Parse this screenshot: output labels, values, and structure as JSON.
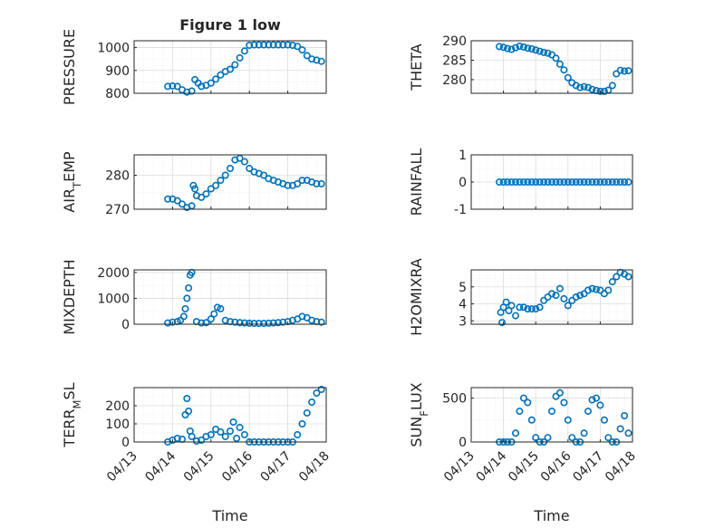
{
  "chart_data": [
    {
      "type": "scatter",
      "title": "Figure 1 low",
      "ylabel": "PRESSURE",
      "ylim": [
        800,
        1030
      ],
      "yticks": [
        800,
        900,
        1000
      ],
      "series": [
        {
          "x": [
            "04/13 21:00",
            "04/14 00:00",
            "04/14 03:00",
            "04/14 06:00",
            "04/14 09:00",
            "04/14 12:00",
            "04/14 14:00",
            "04/14 16:00",
            "04/14 18:00",
            "04/14 21:00",
            "04/15 00:00",
            "04/15 03:00",
            "04/15 06:00",
            "04/15 09:00",
            "04/15 12:00",
            "04/15 15:00",
            "04/15 18:00",
            "04/15 21:00",
            "04/16 00:00",
            "04/16 03:00",
            "04/16 06:00",
            "04/16 09:00",
            "04/16 12:00",
            "04/16 15:00",
            "04/16 18:00",
            "04/16 21:00",
            "04/17 00:00",
            "04/17 03:00",
            "04/17 06:00",
            "04/17 09:00",
            "04/17 12:00",
            "04/17 15:00",
            "04/17 18:00",
            "04/17 21:00"
          ],
          "y": [
            830,
            832,
            830,
            815,
            805,
            810,
            860,
            845,
            830,
            835,
            845,
            862,
            880,
            895,
            905,
            925,
            955,
            985,
            1010,
            1012,
            1012,
            1012,
            1012,
            1012,
            1012,
            1012,
            1012,
            1010,
            1005,
            990,
            965,
            950,
            945,
            940
          ]
        }
      ]
    },
    {
      "type": "scatter",
      "ylabel": "THETA",
      "ylim": [
        276.5,
        290
      ],
      "yticks": [
        280,
        285,
        290
      ],
      "series": [
        {
          "x": [
            "04/13 21:00",
            "04/14 00:00",
            "04/14 03:00",
            "04/14 06:00",
            "04/14 09:00",
            "04/14 12:00",
            "04/14 15:00",
            "04/14 18:00",
            "04/14 21:00",
            "04/15 00:00",
            "04/15 03:00",
            "04/15 06:00",
            "04/15 09:00",
            "04/15 12:00",
            "04/15 15:00",
            "04/15 18:00",
            "04/15 21:00",
            "04/16 00:00",
            "04/16 03:00",
            "04/16 06:00",
            "04/16 09:00",
            "04/16 12:00",
            "04/16 15:00",
            "04/16 18:00",
            "04/16 21:00",
            "04/17 00:00",
            "04/17 03:00",
            "04/17 06:00",
            "04/17 09:00",
            "04/17 12:00",
            "04/17 15:00",
            "04/17 18:00",
            "04/17 21:00"
          ],
          "y": [
            288.5,
            288.3,
            288.0,
            287.8,
            288.2,
            288.6,
            288.4,
            288.1,
            287.9,
            287.6,
            287.3,
            287.0,
            286.8,
            286.4,
            285.5,
            284.0,
            282.5,
            280.5,
            279.2,
            278.5,
            278.0,
            278.2,
            278.0,
            277.5,
            277.2,
            277.0,
            277.0,
            277.3,
            278.5,
            281.5,
            282.4,
            282.2,
            282.3
          ]
        }
      ]
    },
    {
      "type": "scatter",
      "ylabel": "AIR_TEMP",
      "ylim": [
        270,
        286
      ],
      "yticks": [
        270,
        280
      ],
      "series": [
        {
          "x": [
            "04/13 21:00",
            "04/14 00:00",
            "04/14 03:00",
            "04/14 06:00",
            "04/14 09:00",
            "04/14 12:00",
            "04/14 13:00",
            "04/14 14:00",
            "04/14 15:00",
            "04/14 18:00",
            "04/14 21:00",
            "04/15 00:00",
            "04/15 03:00",
            "04/15 06:00",
            "04/15 09:00",
            "04/15 12:00",
            "04/15 15:00",
            "04/15 18:00",
            "04/15 21:00",
            "04/16 00:00",
            "04/16 03:00",
            "04/16 06:00",
            "04/16 09:00",
            "04/16 12:00",
            "04/16 15:00",
            "04/16 18:00",
            "04/16 21:00",
            "04/17 00:00",
            "04/17 03:00",
            "04/17 06:00",
            "04/17 09:00",
            "04/17 12:00",
            "04/17 15:00",
            "04/17 18:00",
            "04/17 21:00"
          ],
          "y": [
            273,
            273,
            272.5,
            271.5,
            270.5,
            271,
            277,
            276,
            274,
            273.5,
            274.5,
            276,
            277,
            278.5,
            280,
            282,
            284.5,
            285,
            284,
            282,
            281,
            280.5,
            280,
            279,
            278.5,
            278,
            277.5,
            277,
            277,
            277.5,
            278.5,
            278.5,
            278,
            277.5,
            277.5
          ]
        }
      ]
    },
    {
      "type": "scatter",
      "ylabel": "RAINFALL",
      "ylim": [
        -1,
        1
      ],
      "yticks": [
        -1,
        0,
        1
      ],
      "series": [
        {
          "x": [
            "04/13 21:00",
            "04/14 00:00",
            "04/14 03:00",
            "04/14 06:00",
            "04/14 09:00",
            "04/14 12:00",
            "04/14 15:00",
            "04/14 18:00",
            "04/14 21:00",
            "04/15 00:00",
            "04/15 03:00",
            "04/15 06:00",
            "04/15 09:00",
            "04/15 12:00",
            "04/15 15:00",
            "04/15 18:00",
            "04/15 21:00",
            "04/16 00:00",
            "04/16 03:00",
            "04/16 06:00",
            "04/16 09:00",
            "04/16 12:00",
            "04/16 15:00",
            "04/16 18:00",
            "04/16 21:00",
            "04/17 00:00",
            "04/17 03:00",
            "04/17 06:00",
            "04/17 09:00",
            "04/17 12:00",
            "04/17 15:00",
            "04/17 18:00",
            "04/17 21:00"
          ],
          "y": [
            0,
            0,
            0,
            0,
            0,
            0,
            0,
            0,
            0,
            0,
            0,
            0,
            0,
            0,
            0,
            0,
            0,
            0,
            0,
            0,
            0,
            0,
            0,
            0,
            0,
            0,
            0,
            0,
            0,
            0,
            0,
            0,
            0
          ]
        }
      ]
    },
    {
      "type": "scatter",
      "ylabel": "MIXDEPTH",
      "ylim": [
        0,
        2100
      ],
      "yticks": [
        0,
        1000,
        2000
      ],
      "series": [
        {
          "x": [
            "04/13 21:00",
            "04/14 00:00",
            "04/14 03:00",
            "04/14 05:00",
            "04/14 07:00",
            "04/14 08:00",
            "04/14 09:00",
            "04/14 10:00",
            "04/14 11:00",
            "04/14 12:00",
            "04/14 15:00",
            "04/14 18:00",
            "04/14 21:00",
            "04/15 00:00",
            "04/15 02:00",
            "04/15 04:00",
            "04/15 06:00",
            "04/15 09:00",
            "04/15 12:00",
            "04/15 15:00",
            "04/15 18:00",
            "04/15 21:00",
            "04/16 00:00",
            "04/16 03:00",
            "04/16 06:00",
            "04/16 09:00",
            "04/16 12:00",
            "04/16 15:00",
            "04/16 18:00",
            "04/16 21:00",
            "04/17 00:00",
            "04/17 03:00",
            "04/17 06:00",
            "04/17 09:00",
            "04/17 12:00",
            "04/17 15:00",
            "04/17 18:00",
            "04/17 21:00"
          ],
          "y": [
            50,
            80,
            100,
            150,
            300,
            600,
            1000,
            1400,
            1900,
            2000,
            100,
            50,
            60,
            200,
            400,
            650,
            600,
            150,
            100,
            80,
            60,
            50,
            40,
            30,
            30,
            30,
            40,
            50,
            60,
            80,
            100,
            150,
            200,
            300,
            250,
            150,
            100,
            80
          ]
        }
      ]
    },
    {
      "type": "scatter",
      "ylabel": "H2OMIXRA",
      "ylim": [
        2.8,
        6.0
      ],
      "yticks": [
        3,
        4,
        5
      ],
      "series": [
        {
          "x": [
            "04/13 22:00",
            "04/13 23:00",
            "04/14 00:00",
            "04/14 02:00",
            "04/14 04:00",
            "04/14 06:00",
            "04/14 09:00",
            "04/14 12:00",
            "04/14 15:00",
            "04/14 18:00",
            "04/14 21:00",
            "04/15 00:00",
            "04/15 03:00",
            "04/15 06:00",
            "04/15 09:00",
            "04/15 12:00",
            "04/15 15:00",
            "04/15 18:00",
            "04/15 21:00",
            "04/16 00:00",
            "04/16 03:00",
            "04/16 06:00",
            "04/16 09:00",
            "04/16 12:00",
            "04/16 15:00",
            "04/16 18:00",
            "04/16 21:00",
            "04/17 00:00",
            "04/17 03:00",
            "04/17 06:00",
            "04/17 09:00",
            "04/17 12:00",
            "04/17 15:00",
            "04/17 18:00",
            "04/17 21:00"
          ],
          "y": [
            3.5,
            2.9,
            3.8,
            4.1,
            3.6,
            3.9,
            3.3,
            3.8,
            3.8,
            3.7,
            3.7,
            3.7,
            3.8,
            4.2,
            4.4,
            4.6,
            4.5,
            4.9,
            4.3,
            3.9,
            4.2,
            4.4,
            4.5,
            4.6,
            4.8,
            4.9,
            4.85,
            4.8,
            4.6,
            4.8,
            5.3,
            5.6,
            5.85,
            5.75,
            5.6
          ]
        }
      ]
    },
    {
      "type": "scatter",
      "ylabel": "TERR_MSL",
      "xlabel": "Time",
      "ylim": [
        0,
        300
      ],
      "yticks": [
        0,
        100,
        200
      ],
      "xticks": [
        "04/13",
        "04/14",
        "04/15",
        "04/16",
        "04/17",
        "04/18"
      ],
      "series": [
        {
          "x": [
            "04/13 21:00",
            "04/14 00:00",
            "04/14 03:00",
            "04/14 06:00",
            "04/14 08:00",
            "04/14 09:00",
            "04/14 10:00",
            "04/14 11:00",
            "04/14 12:00",
            "04/14 15:00",
            "04/14 18:00",
            "04/14 21:00",
            "04/15 00:00",
            "04/15 03:00",
            "04/15 06:00",
            "04/15 09:00",
            "04/15 12:00",
            "04/15 14:00",
            "04/15 16:00",
            "04/15 18:00",
            "04/15 21:00",
            "04/16 00:00",
            "04/16 03:00",
            "04/16 06:00",
            "04/16 09:00",
            "04/16 12:00",
            "04/16 15:00",
            "04/16 18:00",
            "04/16 21:00",
            "04/17 00:00",
            "04/17 03:00",
            "04/17 06:00",
            "04/17 09:00",
            "04/17 12:00",
            "04/17 15:00",
            "04/17 18:00",
            "04/17 21:00"
          ],
          "y": [
            0,
            10,
            20,
            15,
            150,
            240,
            170,
            60,
            30,
            5,
            10,
            30,
            40,
            70,
            55,
            30,
            60,
            110,
            20,
            80,
            40,
            0,
            0,
            0,
            0,
            0,
            0,
            0,
            0,
            0,
            0,
            40,
            100,
            160,
            220,
            270,
            290
          ]
        }
      ]
    },
    {
      "type": "scatter",
      "ylabel": "SUN_FLUX",
      "xlabel": "Time",
      "ylim": [
        0,
        620
      ],
      "yticks": [
        0,
        500
      ],
      "xticks": [
        "04/13",
        "04/14",
        "04/15",
        "04/16",
        "04/17",
        "04/18"
      ],
      "series": [
        {
          "x": [
            "04/13 21:00",
            "04/14 00:00",
            "04/14 03:00",
            "04/14 06:00",
            "04/14 09:00",
            "04/14 12:00",
            "04/14 15:00",
            "04/14 18:00",
            "04/14 21:00",
            "04/15 00:00",
            "04/15 03:00",
            "04/15 06:00",
            "04/15 09:00",
            "04/15 12:00",
            "04/15 15:00",
            "04/15 18:00",
            "04/15 21:00",
            "04/16 00:00",
            "04/16 03:00",
            "04/16 06:00",
            "04/16 09:00",
            "04/16 12:00",
            "04/16 15:00",
            "04/16 18:00",
            "04/16 21:00",
            "04/17 00:00",
            "04/17 03:00",
            "04/17 06:00",
            "04/17 09:00",
            "04/17 12:00",
            "04/17 15:00",
            "04/17 18:00",
            "04/17 21:00"
          ],
          "y": [
            0,
            0,
            0,
            0,
            100,
            350,
            500,
            450,
            250,
            50,
            0,
            0,
            50,
            350,
            520,
            560,
            450,
            250,
            50,
            0,
            0,
            100,
            350,
            480,
            500,
            420,
            250,
            50,
            0,
            0,
            150,
            300,
            100
          ]
        }
      ]
    }
  ]
}
